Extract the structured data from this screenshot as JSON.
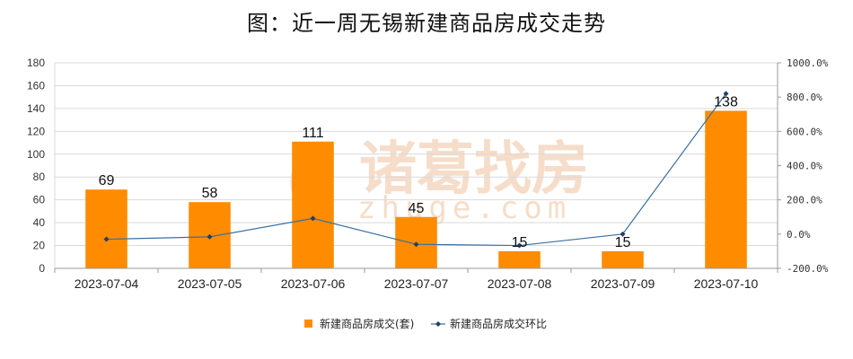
{
  "title": "图：近一周无锡新建商品房成交走势",
  "watermark": {
    "cn": "诸葛找房",
    "en": "zhuge.com"
  },
  "colors": {
    "bar": "#ff8c00",
    "line": "#3a6fa0",
    "marker": "#1f3f66",
    "grid": "#d9d9d9",
    "axis": "#999999",
    "watermark": "#f6ddc9"
  },
  "chart_data": {
    "type": "bar",
    "categories": [
      "2023-07-04",
      "2023-07-05",
      "2023-07-06",
      "2023-07-07",
      "2023-07-08",
      "2023-07-09",
      "2023-07-10"
    ],
    "series": [
      {
        "name": "新建商品房成交(套)",
        "type": "bar",
        "axis": "left",
        "values": [
          69,
          58,
          111,
          45,
          15,
          15,
          138
        ],
        "data_labels": true
      },
      {
        "name": "新建商品房成交环比",
        "type": "line",
        "axis": "right",
        "values": [
          -30.0,
          -15.9,
          91.4,
          -59.5,
          -66.7,
          0.0,
          820.0
        ]
      }
    ],
    "y_left": {
      "min": 0,
      "max": 180,
      "step": 20,
      "ticks": [
        "0",
        "20",
        "40",
        "60",
        "80",
        "100",
        "120",
        "140",
        "160",
        "180"
      ]
    },
    "y_right": {
      "min": -200,
      "max": 1000,
      "step": 200,
      "ticks": [
        "-200.0%",
        "0.0%",
        "200.0%",
        "400.0%",
        "600.0%",
        "800.0%",
        "1000.0%"
      ]
    },
    "grid": true,
    "legend_position": "bottom-center"
  }
}
